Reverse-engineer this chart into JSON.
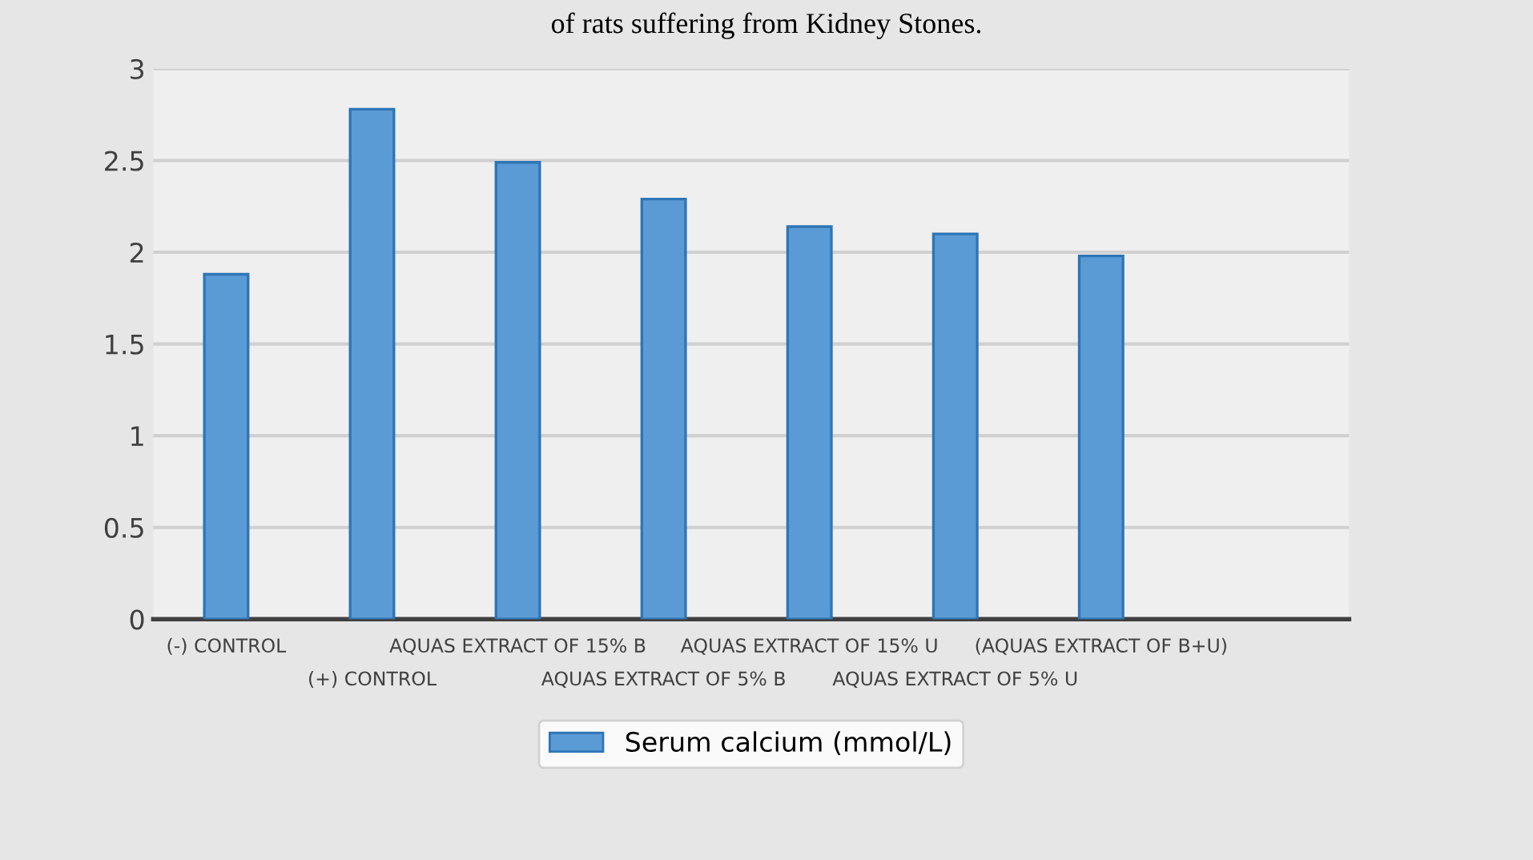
{
  "chart_data": {
    "type": "bar",
    "title": "of rats suffering from Kidney Stones.",
    "categories": [
      "(-) CONTROL",
      "(+) CONTROL",
      "AQUAS EXTRACT OF 15% B",
      "AQUAS EXTRACT OF 5% B",
      "AQUAS EXTRACT OF 15% U",
      "AQUAS EXTRACT OF 5% U",
      "(AQUAS EXTRACT OF B+U)"
    ],
    "series": [
      {
        "name": "Serum calcium (mmol/L)",
        "color": "#5b9bd5",
        "values": [
          1.88,
          2.78,
          2.49,
          2.29,
          2.14,
          2.1,
          1.98
        ]
      }
    ],
    "ylim": [
      0,
      3
    ],
    "yticks": [
      0,
      0.5,
      1,
      1.5,
      2,
      2.5,
      3
    ],
    "grid": "y",
    "legend": "bottom"
  }
}
